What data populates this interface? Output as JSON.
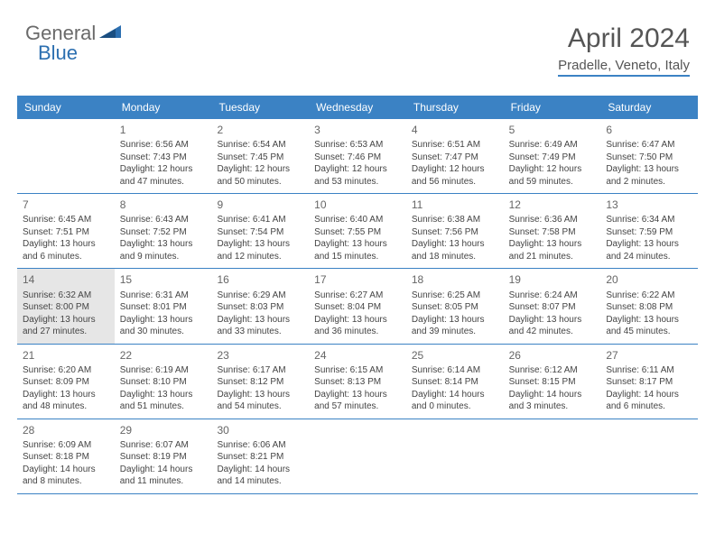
{
  "logo": {
    "part1": "General",
    "part2": "Blue"
  },
  "title": {
    "month": "April 2024",
    "location": "Pradelle, Veneto, Italy"
  },
  "colors": {
    "header_bg": "#3b82c4",
    "header_text": "#ffffff",
    "border": "#3b82c4",
    "today_bg": "#e6e6e6",
    "text": "#444444",
    "logo_gray": "#6a6a6a",
    "logo_blue": "#2c6fb0"
  },
  "weekdays": [
    "Sunday",
    "Monday",
    "Tuesday",
    "Wednesday",
    "Thursday",
    "Friday",
    "Saturday"
  ],
  "weeks": [
    [
      {
        "n": "",
        "empty": true
      },
      {
        "n": "1",
        "sr": "6:56 AM",
        "ss": "7:43 PM",
        "dl": "12 hours and 47 minutes."
      },
      {
        "n": "2",
        "sr": "6:54 AM",
        "ss": "7:45 PM",
        "dl": "12 hours and 50 minutes."
      },
      {
        "n": "3",
        "sr": "6:53 AM",
        "ss": "7:46 PM",
        "dl": "12 hours and 53 minutes."
      },
      {
        "n": "4",
        "sr": "6:51 AM",
        "ss": "7:47 PM",
        "dl": "12 hours and 56 minutes."
      },
      {
        "n": "5",
        "sr": "6:49 AM",
        "ss": "7:49 PM",
        "dl": "12 hours and 59 minutes."
      },
      {
        "n": "6",
        "sr": "6:47 AM",
        "ss": "7:50 PM",
        "dl": "13 hours and 2 minutes."
      }
    ],
    [
      {
        "n": "7",
        "sr": "6:45 AM",
        "ss": "7:51 PM",
        "dl": "13 hours and 6 minutes."
      },
      {
        "n": "8",
        "sr": "6:43 AM",
        "ss": "7:52 PM",
        "dl": "13 hours and 9 minutes."
      },
      {
        "n": "9",
        "sr": "6:41 AM",
        "ss": "7:54 PM",
        "dl": "13 hours and 12 minutes."
      },
      {
        "n": "10",
        "sr": "6:40 AM",
        "ss": "7:55 PM",
        "dl": "13 hours and 15 minutes."
      },
      {
        "n": "11",
        "sr": "6:38 AM",
        "ss": "7:56 PM",
        "dl": "13 hours and 18 minutes."
      },
      {
        "n": "12",
        "sr": "6:36 AM",
        "ss": "7:58 PM",
        "dl": "13 hours and 21 minutes."
      },
      {
        "n": "13",
        "sr": "6:34 AM",
        "ss": "7:59 PM",
        "dl": "13 hours and 24 minutes."
      }
    ],
    [
      {
        "n": "14",
        "sr": "6:32 AM",
        "ss": "8:00 PM",
        "dl": "13 hours and 27 minutes.",
        "today": true
      },
      {
        "n": "15",
        "sr": "6:31 AM",
        "ss": "8:01 PM",
        "dl": "13 hours and 30 minutes."
      },
      {
        "n": "16",
        "sr": "6:29 AM",
        "ss": "8:03 PM",
        "dl": "13 hours and 33 minutes."
      },
      {
        "n": "17",
        "sr": "6:27 AM",
        "ss": "8:04 PM",
        "dl": "13 hours and 36 minutes."
      },
      {
        "n": "18",
        "sr": "6:25 AM",
        "ss": "8:05 PM",
        "dl": "13 hours and 39 minutes."
      },
      {
        "n": "19",
        "sr": "6:24 AM",
        "ss": "8:07 PM",
        "dl": "13 hours and 42 minutes."
      },
      {
        "n": "20",
        "sr": "6:22 AM",
        "ss": "8:08 PM",
        "dl": "13 hours and 45 minutes."
      }
    ],
    [
      {
        "n": "21",
        "sr": "6:20 AM",
        "ss": "8:09 PM",
        "dl": "13 hours and 48 minutes."
      },
      {
        "n": "22",
        "sr": "6:19 AM",
        "ss": "8:10 PM",
        "dl": "13 hours and 51 minutes."
      },
      {
        "n": "23",
        "sr": "6:17 AM",
        "ss": "8:12 PM",
        "dl": "13 hours and 54 minutes."
      },
      {
        "n": "24",
        "sr": "6:15 AM",
        "ss": "8:13 PM",
        "dl": "13 hours and 57 minutes."
      },
      {
        "n": "25",
        "sr": "6:14 AM",
        "ss": "8:14 PM",
        "dl": "14 hours and 0 minutes."
      },
      {
        "n": "26",
        "sr": "6:12 AM",
        "ss": "8:15 PM",
        "dl": "14 hours and 3 minutes."
      },
      {
        "n": "27",
        "sr": "6:11 AM",
        "ss": "8:17 PM",
        "dl": "14 hours and 6 minutes."
      }
    ],
    [
      {
        "n": "28",
        "sr": "6:09 AM",
        "ss": "8:18 PM",
        "dl": "14 hours and 8 minutes."
      },
      {
        "n": "29",
        "sr": "6:07 AM",
        "ss": "8:19 PM",
        "dl": "14 hours and 11 minutes."
      },
      {
        "n": "30",
        "sr": "6:06 AM",
        "ss": "8:21 PM",
        "dl": "14 hours and 14 minutes."
      },
      {
        "n": "",
        "empty": true
      },
      {
        "n": "",
        "empty": true
      },
      {
        "n": "",
        "empty": true
      },
      {
        "n": "",
        "empty": true
      }
    ]
  ],
  "labels": {
    "sunrise": "Sunrise:",
    "sunset": "Sunset:",
    "daylight": "Daylight:"
  }
}
